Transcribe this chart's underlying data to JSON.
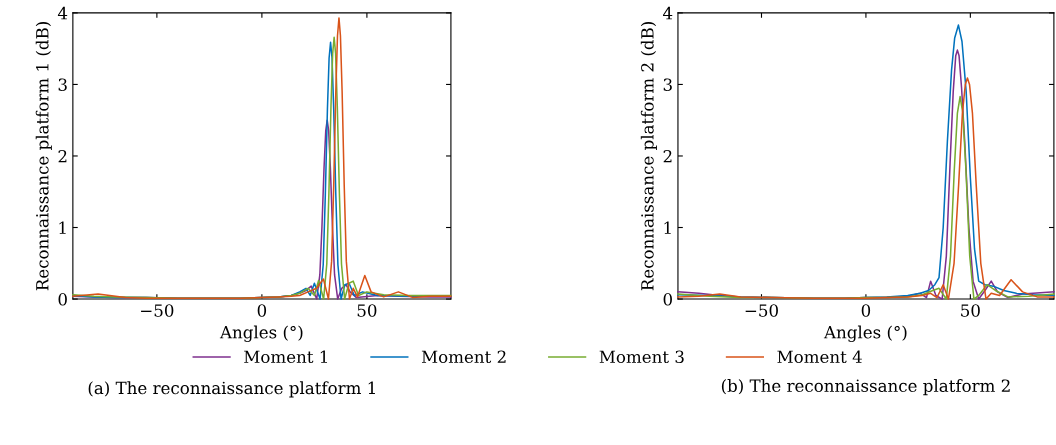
{
  "chart_data": [
    {
      "type": "line",
      "xlabel": "Angles (°)",
      "ylabel": "Reconnaissance platform 1 (dB)",
      "xlim": [
        -90,
        90
      ],
      "xticks": [
        {
          "value": -50,
          "label": "−50"
        },
        0,
        50
      ],
      "ylim": [
        0,
        4
      ],
      "yticks": [
        0,
        1,
        2,
        3,
        4
      ],
      "grid": false,
      "legend": "bottom",
      "marker": "none",
      "line_style": "solid",
      "annotations": [
        "(a) The reconnaissance platform 1"
      ],
      "series": [
        {
          "name": "Moment 1",
          "color": "#7e2f8e",
          "x": [
            -90,
            -80,
            -70,
            -55,
            -40,
            -25,
            -10,
            0,
            8,
            14,
            18,
            21,
            23.5,
            26.1,
            27.6,
            28.6,
            29.6,
            30.4,
            31.1,
            31.8,
            32.6,
            33.6,
            34.6,
            36.1,
            38,
            40,
            42,
            45,
            55,
            65,
            80,
            90
          ],
          "values": [
            0.04,
            0.03,
            0.02,
            0.02,
            0.01,
            0.01,
            0.01,
            0.02,
            0.03,
            0.05,
            0.08,
            0.12,
            0.18,
            0.0,
            0.34,
            1.01,
            1.84,
            2.35,
            2.5,
            2.35,
            1.84,
            1.01,
            0.34,
            0.0,
            0.15,
            0.2,
            0.1,
            0.02,
            0.05,
            0.04,
            0.03,
            0.03
          ]
        },
        {
          "name": "Moment 2",
          "color": "#0072bd",
          "x": [
            -90,
            -80,
            -70,
            -55,
            -40,
            -25,
            -10,
            0,
            8,
            14,
            18,
            21,
            23,
            25,
            27.7,
            29.2,
            30.2,
            31.2,
            32,
            32.7,
            33.4,
            34.2,
            35.2,
            36.2,
            37.7,
            39.5,
            41.5,
            44,
            48,
            55,
            70,
            90
          ],
          "values": [
            0.05,
            0.03,
            0.02,
            0.02,
            0.01,
            0.01,
            0.01,
            0.02,
            0.03,
            0.05,
            0.1,
            0.15,
            0.05,
            0.22,
            0.0,
            0.48,
            1.45,
            2.65,
            3.37,
            3.59,
            3.37,
            2.65,
            1.45,
            0.48,
            0.0,
            0.2,
            0.22,
            0.05,
            0.1,
            0.05,
            0.04,
            0.04
          ]
        },
        {
          "name": "Moment 3",
          "color": "#77ac30",
          "x": [
            -90,
            -80,
            -70,
            -55,
            -40,
            -25,
            -10,
            0,
            8,
            14,
            18,
            22,
            25,
            27,
            29.4,
            30.9,
            31.9,
            32.9,
            33.7,
            34.4,
            35.1,
            35.9,
            36.9,
            37.9,
            39.4,
            41.5,
            43.5,
            46,
            50,
            58,
            70,
            90
          ],
          "values": [
            0.06,
            0.04,
            0.03,
            0.02,
            0.01,
            0.01,
            0.01,
            0.02,
            0.03,
            0.05,
            0.08,
            0.15,
            0.05,
            0.26,
            0.0,
            0.49,
            1.48,
            2.7,
            3.43,
            3.66,
            3.43,
            2.7,
            1.48,
            0.49,
            0.0,
            0.22,
            0.25,
            0.05,
            0.1,
            0.06,
            0.05,
            0.05
          ]
        },
        {
          "name": "Moment 4",
          "color": "#d95319",
          "x": [
            -90,
            -78,
            -65,
            -55,
            -40,
            -25,
            -10,
            0,
            8,
            14,
            18,
            22,
            26,
            29.3,
            31.7,
            33.2,
            34.2,
            35.2,
            36,
            36.7,
            37.4,
            38.2,
            39.2,
            40.2,
            41.7,
            43.5,
            45.5,
            49,
            52,
            58,
            65,
            72,
            80,
            90
          ],
          "values": [
            0.04,
            0.07,
            0.02,
            0.01,
            0.01,
            0.01,
            0.01,
            0.02,
            0.03,
            0.04,
            0.05,
            0.1,
            0.15,
            0.28,
            0.0,
            0.53,
            1.59,
            2.9,
            3.68,
            3.93,
            3.68,
            2.9,
            1.59,
            0.53,
            0.0,
            0.15,
            0.03,
            0.33,
            0.1,
            0.03,
            0.1,
            0.02,
            0.04,
            0.04
          ]
        }
      ]
    },
    {
      "type": "line",
      "xlabel": "Angles (°)",
      "ylabel": "Reconnaissance platform 2 (dB)",
      "xlim": [
        -90,
        90
      ],
      "xticks": [
        {
          "value": -50,
          "label": "−50"
        },
        0,
        50
      ],
      "ylim": [
        0,
        4
      ],
      "yticks": [
        0,
        1,
        2,
        3,
        4
      ],
      "grid": false,
      "legend": "bottom",
      "marker": "none",
      "line_style": "solid",
      "annotations": [
        "(b) The reconnaissance platform 2"
      ],
      "series": [
        {
          "name": "Moment 1",
          "color": "#7e2f8e",
          "x": [
            -90,
            -80,
            -70,
            -60,
            -45,
            -25,
            -10,
            0,
            10,
            20,
            26,
            29,
            31,
            33.5,
            36.5,
            38.5,
            40.3,
            41.8,
            43,
            43.8,
            44.6,
            45.8,
            47.3,
            49.3,
            51.3,
            54,
            57,
            60,
            63,
            68,
            75,
            90
          ],
          "values": [
            0.1,
            0.08,
            0.05,
            0.03,
            0.02,
            0.01,
            0.01,
            0.02,
            0.02,
            0.04,
            0.08,
            0.02,
            0.25,
            0.05,
            0.0,
            0.6,
            1.9,
            2.9,
            3.4,
            3.48,
            3.4,
            2.95,
            2.2,
            1.0,
            0.25,
            0.0,
            0.12,
            0.25,
            0.1,
            0.02,
            0.07,
            0.1
          ]
        },
        {
          "name": "Moment 2",
          "color": "#0072bd",
          "x": [
            -90,
            -75,
            -60,
            -45,
            -25,
            -10,
            0,
            10,
            20,
            26,
            30,
            33,
            35,
            37,
            39,
            41,
            42.5,
            44.3,
            46,
            48,
            50,
            52,
            54,
            57,
            61,
            66,
            72,
            80,
            90
          ],
          "values": [
            0.06,
            0.05,
            0.03,
            0.02,
            0.01,
            0.01,
            0.02,
            0.03,
            0.05,
            0.08,
            0.12,
            0.2,
            0.3,
            1.0,
            2.2,
            3.2,
            3.65,
            3.83,
            3.6,
            2.9,
            1.7,
            0.7,
            0.25,
            0.2,
            0.18,
            0.12,
            0.08,
            0.06,
            0.05
          ]
        },
        {
          "name": "Moment 3",
          "color": "#77ac30",
          "x": [
            -90,
            -75,
            -60,
            -45,
            -25,
            -10,
            0,
            10,
            20,
            27,
            32,
            35,
            38.5,
            40.5,
            42.3,
            43.8,
            45.1,
            46.4,
            47.9,
            49.7,
            51.7,
            54,
            58,
            62,
            68,
            78,
            90
          ],
          "values": [
            0.07,
            0.04,
            0.02,
            0.02,
            0.01,
            0.01,
            0.02,
            0.02,
            0.03,
            0.06,
            0.12,
            0.15,
            0.0,
            0.6,
            1.8,
            2.6,
            2.83,
            2.6,
            1.8,
            0.6,
            0.0,
            0.05,
            0.2,
            0.12,
            0.03,
            0.04,
            0.07
          ]
        },
        {
          "name": "Moment 4",
          "color": "#d95319",
          "x": [
            -90,
            -80,
            -70,
            -60,
            -45,
            -25,
            -10,
            0,
            10,
            20,
            27,
            31,
            34,
            37,
            39.5,
            42.2,
            44.4,
            46.2,
            47.6,
            48.6,
            49.6,
            51,
            52.8,
            55,
            57.5,
            60,
            64,
            69.5,
            75,
            82,
            90
          ],
          "values": [
            0.03,
            0.04,
            0.07,
            0.03,
            0.02,
            0.01,
            0.01,
            0.01,
            0.02,
            0.03,
            0.05,
            0.08,
            0.02,
            0.2,
            0.0,
            0.5,
            1.6,
            2.6,
            3.0,
            3.09,
            3.0,
            2.6,
            1.6,
            0.5,
            0.0,
            0.08,
            0.05,
            0.27,
            0.1,
            0.03,
            0.03
          ]
        }
      ]
    }
  ]
}
